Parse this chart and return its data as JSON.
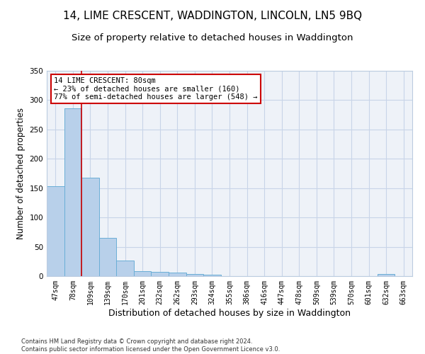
{
  "title": "14, LIME CRESCENT, WADDINGTON, LINCOLN, LN5 9BQ",
  "subtitle": "Size of property relative to detached houses in Waddington",
  "xlabel": "Distribution of detached houses by size in Waddington",
  "ylabel": "Number of detached properties",
  "bar_labels": [
    "47sqm",
    "78sqm",
    "109sqm",
    "139sqm",
    "170sqm",
    "201sqm",
    "232sqm",
    "262sqm",
    "293sqm",
    "324sqm",
    "355sqm",
    "386sqm",
    "416sqm",
    "447sqm",
    "478sqm",
    "509sqm",
    "539sqm",
    "570sqm",
    "601sqm",
    "632sqm",
    "663sqm"
  ],
  "bar_values": [
    153,
    286,
    168,
    65,
    26,
    9,
    7,
    6,
    4,
    3,
    0,
    0,
    0,
    0,
    0,
    0,
    0,
    0,
    0,
    4,
    0
  ],
  "bar_color": "#b8d0ea",
  "bar_edge_color": "#6aaed6",
  "property_line_color": "#cc0000",
  "annotation_text": "14 LIME CRESCENT: 80sqm\n← 23% of detached houses are smaller (160)\n77% of semi-detached houses are larger (548) →",
  "annotation_box_color": "#ffffff",
  "annotation_box_edge_color": "#cc0000",
  "ylim": [
    0,
    350
  ],
  "yticks": [
    0,
    50,
    100,
    150,
    200,
    250,
    300,
    350
  ],
  "grid_color": "#c8d4e8",
  "bg_color": "#eef2f8",
  "footer_text": "Contains HM Land Registry data © Crown copyright and database right 2024.\nContains public sector information licensed under the Open Government Licence v3.0.",
  "title_fontsize": 11,
  "subtitle_fontsize": 9.5,
  "xlabel_fontsize": 9,
  "ylabel_fontsize": 8.5,
  "tick_fontsize": 7,
  "annotation_fontsize": 7.5
}
